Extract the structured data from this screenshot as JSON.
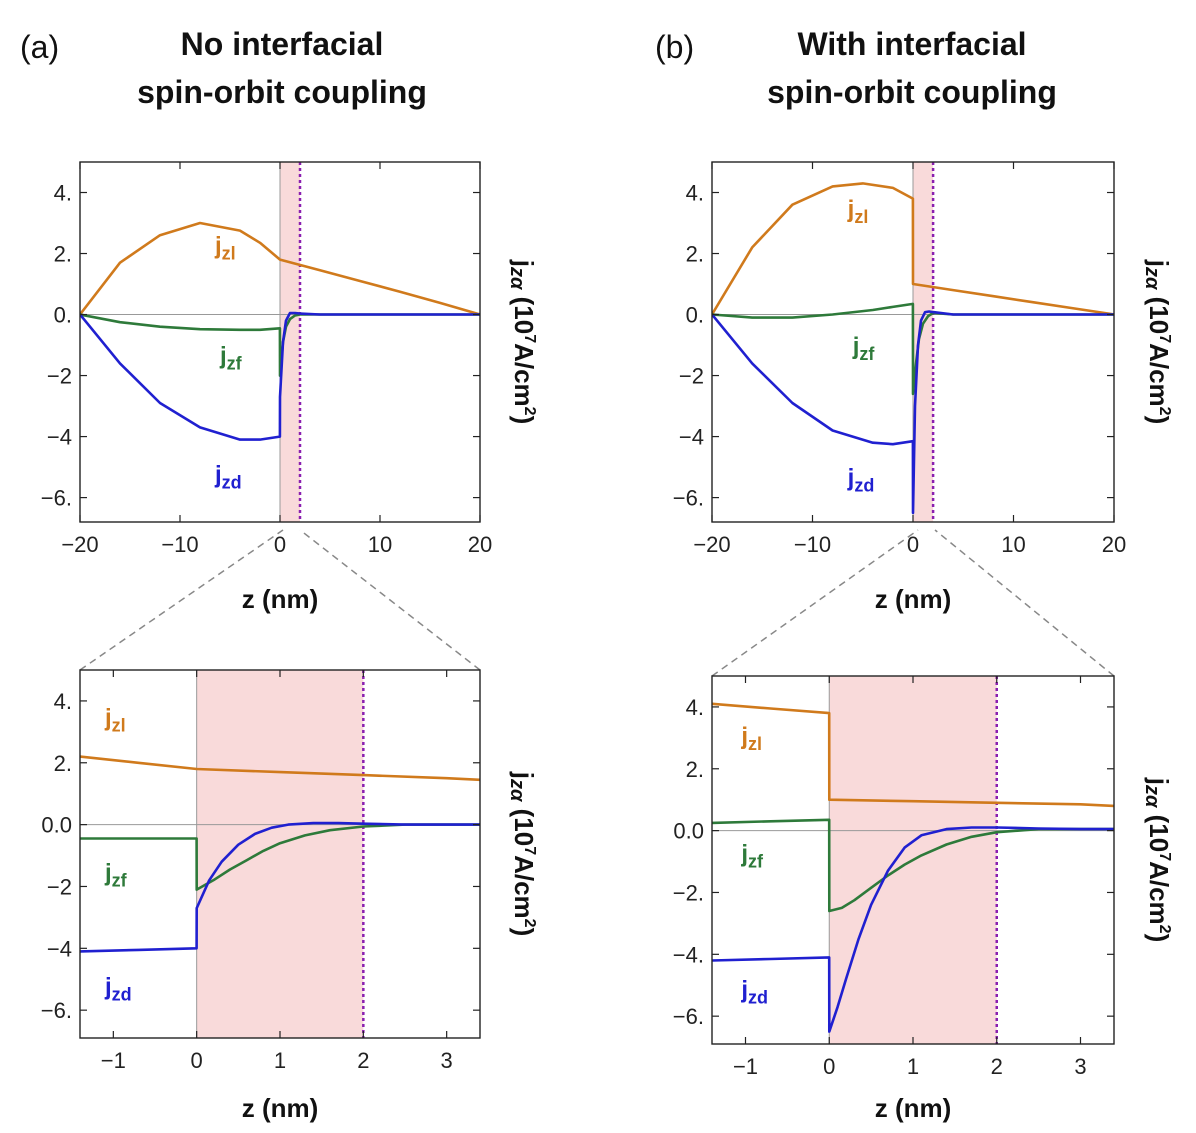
{
  "panels": [
    {
      "id": "a",
      "label": "(a)",
      "title_line1": "No interfacial",
      "title_line2": "spin-orbit coupling"
    },
    {
      "id": "b",
      "label": "(b)",
      "title_line1": "With interfacial",
      "title_line2": "spin-orbit coupling"
    }
  ],
  "ylabel": {
    "main": "j",
    "sub": "zα",
    "rest": " (10",
    "sup7": "7",
    "unit": "A/cm",
    "sup2": "2",
    "close": ")"
  },
  "xlabel": "z (nm)",
  "colors": {
    "jzl": "#d07a1c",
    "jzf": "#2e7a3a",
    "jzd": "#2020d0",
    "interface": "#f9dada",
    "dotted": "#8a1fb0",
    "zero": "#999999"
  },
  "chart_data": [
    {
      "type": "line",
      "panel": "a-top",
      "xlim": [
        -20,
        20
      ],
      "ylim": [
        -6.8,
        5
      ],
      "xticks": [
        "−20",
        "−10",
        "0",
        "10",
        "20"
      ],
      "xtick_values": [
        -20,
        -10,
        0,
        10,
        20
      ],
      "yticks": [
        "4.",
        "2.",
        "0.",
        "−2",
        "−4",
        "−6."
      ],
      "ytick_values": [
        4,
        2,
        0,
        -2,
        -4,
        -6
      ],
      "shade": [
        0,
        2
      ],
      "dotted_x": 2,
      "series": [
        {
          "name": "jzl",
          "label_main": "j",
          "label_sub": "zl",
          "label_at": [
            -6.5,
            2.0
          ],
          "x": [
            -20,
            -16,
            -12,
            -8,
            -4,
            -2,
            0,
            4,
            8,
            12,
            16,
            20
          ],
          "y": [
            0,
            1.7,
            2.6,
            3.0,
            2.75,
            2.35,
            1.8,
            1.45,
            1.1,
            0.75,
            0.38,
            0
          ]
        },
        {
          "name": "jzf",
          "label_main": "j",
          "label_sub": "zf",
          "label_at": [
            -6.0,
            -1.6
          ],
          "x": [
            -20,
            -16,
            -12,
            -8,
            -4,
            -2,
            -0.01,
            0.0,
            0.3,
            0.6,
            1.0,
            1.5,
            2,
            4,
            8,
            12,
            16,
            20
          ],
          "y": [
            0,
            -0.25,
            -0.4,
            -0.48,
            -0.5,
            -0.5,
            -0.45,
            -2.0,
            -0.9,
            -0.4,
            -0.15,
            -0.03,
            0,
            0,
            0,
            0,
            0,
            0
          ]
        },
        {
          "name": "jzd",
          "label_main": "j",
          "label_sub": "zd",
          "label_at": [
            -6.5,
            -5.5
          ],
          "x": [
            -20,
            -16,
            -12,
            -8,
            -4,
            -2,
            -0.01,
            0.0,
            0.3,
            0.6,
            1.0,
            1.5,
            2,
            4,
            8,
            12,
            16,
            20
          ],
          "y": [
            0,
            -1.6,
            -2.9,
            -3.7,
            -4.1,
            -4.1,
            -4.0,
            -2.7,
            -0.9,
            -0.2,
            0.05,
            0.05,
            0.03,
            0,
            0,
            0,
            0,
            0
          ]
        }
      ]
    },
    {
      "type": "line",
      "panel": "a-bottom",
      "xlim": [
        -1.4,
        3.4
      ],
      "ylim": [
        -6.9,
        5
      ],
      "xticks": [
        "−1",
        "0",
        "1",
        "2",
        "3"
      ],
      "xtick_values": [
        -1,
        0,
        1,
        2,
        3
      ],
      "yticks": [
        "4.",
        "2.",
        "0.0",
        "−2",
        "−4",
        "−6."
      ],
      "ytick_values": [
        4,
        2,
        0,
        -2,
        -4,
        -6
      ],
      "shade": [
        0,
        2
      ],
      "dotted_x": 2,
      "series": [
        {
          "name": "jzl",
          "label_main": "j",
          "label_sub": "zl",
          "label_at": [
            -1.1,
            3.2
          ],
          "x": [
            -1.4,
            -0.7,
            0,
            1,
            2,
            3,
            3.4
          ],
          "y": [
            2.2,
            2.0,
            1.8,
            1.7,
            1.6,
            1.5,
            1.45
          ]
        },
        {
          "name": "jzf",
          "label_main": "j",
          "label_sub": "zf",
          "label_at": [
            -1.1,
            -1.8
          ],
          "x": [
            -1.4,
            -0.7,
            -0.001,
            0.0,
            0.2,
            0.4,
            0.6,
            0.8,
            1.0,
            1.3,
            1.6,
            2.0,
            2.5,
            3.0,
            3.4
          ],
          "y": [
            -0.45,
            -0.45,
            -0.45,
            -2.1,
            -1.8,
            -1.45,
            -1.15,
            -0.85,
            -0.6,
            -0.35,
            -0.18,
            -0.06,
            0,
            0,
            0
          ]
        },
        {
          "name": "jzd",
          "label_main": "j",
          "label_sub": "zd",
          "label_at": [
            -1.1,
            -5.5
          ],
          "x": [
            -1.4,
            -0.7,
            -0.001,
            0.0,
            0.15,
            0.3,
            0.5,
            0.7,
            0.9,
            1.1,
            1.4,
            1.7,
            2.0,
            2.5,
            3.0,
            3.4
          ],
          "y": [
            -4.1,
            -4.05,
            -4.0,
            -2.7,
            -1.8,
            -1.2,
            -0.65,
            -0.3,
            -0.1,
            0.0,
            0.05,
            0.05,
            0.03,
            0,
            0,
            0
          ]
        }
      ]
    },
    {
      "type": "line",
      "panel": "b-top",
      "xlim": [
        -20,
        20
      ],
      "ylim": [
        -6.8,
        5
      ],
      "xticks": [
        "−20",
        "−10",
        "0",
        "10",
        "20"
      ],
      "xtick_values": [
        -20,
        -10,
        0,
        10,
        20
      ],
      "yticks": [
        "4.",
        "2.",
        "0.",
        "−2",
        "−4",
        "−6."
      ],
      "ytick_values": [
        4,
        2,
        0,
        -2,
        -4,
        -6
      ],
      "shade": [
        0,
        2
      ],
      "dotted_x": 2,
      "series": [
        {
          "name": "jzl",
          "label_main": "j",
          "label_sub": "zl",
          "label_at": [
            -6.5,
            3.2
          ],
          "x": [
            -20,
            -16,
            -12,
            -8,
            -5,
            -2,
            -0.01,
            0.0,
            4,
            8,
            12,
            16,
            20
          ],
          "y": [
            0,
            2.2,
            3.6,
            4.2,
            4.3,
            4.15,
            3.8,
            1.0,
            0.8,
            0.6,
            0.4,
            0.2,
            0
          ]
        },
        {
          "name": "jzf",
          "label_main": "j",
          "label_sub": "zf",
          "label_at": [
            -6.0,
            -1.3
          ],
          "x": [
            -20,
            -16,
            -12,
            -8,
            -4,
            -2,
            -0.01,
            0.0,
            0.3,
            0.6,
            1.0,
            1.5,
            2,
            4,
            8,
            12,
            16,
            20
          ],
          "y": [
            0,
            -0.1,
            -0.1,
            0.0,
            0.15,
            0.25,
            0.35,
            -2.6,
            -1.6,
            -0.8,
            -0.3,
            -0.05,
            0.05,
            0,
            0,
            0,
            0,
            0
          ]
        },
        {
          "name": "jzd",
          "label_main": "j",
          "label_sub": "zd",
          "label_at": [
            -6.5,
            -5.6
          ],
          "x": [
            -20,
            -16,
            -12,
            -8,
            -4,
            -2,
            -0.01,
            0.0,
            0.2,
            0.5,
            0.8,
            1.2,
            1.6,
            2,
            4,
            8,
            12,
            16,
            20
          ],
          "y": [
            0,
            -1.6,
            -2.9,
            -3.8,
            -4.2,
            -4.25,
            -4.15,
            -6.5,
            -3.0,
            -1.0,
            -0.2,
            0.08,
            0.1,
            0.08,
            0,
            0,
            0,
            0,
            0
          ]
        }
      ]
    },
    {
      "type": "line",
      "panel": "b-bottom",
      "xlim": [
        -1.4,
        3.4
      ],
      "ylim": [
        -6.9,
        5
      ],
      "xticks": [
        "−1",
        "0",
        "1",
        "2",
        "3"
      ],
      "xtick_values": [
        -1,
        0,
        1,
        2,
        3
      ],
      "yticks": [
        "4.",
        "2.",
        "0.0",
        "−2.",
        "−4.",
        "−6."
      ],
      "ytick_values": [
        4,
        2,
        0,
        -2,
        -4,
        -6
      ],
      "shade": [
        0,
        2
      ],
      "dotted_x": 2,
      "series": [
        {
          "name": "jzl",
          "label_main": "j",
          "label_sub": "zl",
          "label_at": [
            -1.05,
            2.8
          ],
          "x": [
            -1.4,
            -0.7,
            -0.001,
            0.0,
            1,
            2,
            3,
            3.4
          ],
          "y": [
            4.1,
            3.95,
            3.8,
            1.0,
            0.95,
            0.9,
            0.85,
            0.8
          ]
        },
        {
          "name": "jzf",
          "label_main": "j",
          "label_sub": "zf",
          "label_at": [
            -1.05,
            -1.0
          ],
          "x": [
            -1.4,
            -0.7,
            -0.001,
            0.0,
            0.15,
            0.3,
            0.5,
            0.7,
            0.9,
            1.1,
            1.4,
            1.7,
            2.0,
            2.5,
            3.0,
            3.4
          ],
          "y": [
            0.25,
            0.3,
            0.35,
            -2.6,
            -2.5,
            -2.25,
            -1.85,
            -1.45,
            -1.1,
            -0.8,
            -0.45,
            -0.2,
            -0.05,
            0.05,
            0.05,
            0.05
          ]
        },
        {
          "name": "jzd",
          "label_main": "j",
          "label_sub": "zd",
          "label_at": [
            -1.05,
            -5.4
          ],
          "x": [
            -1.4,
            -0.7,
            -0.001,
            0.0,
            0.1,
            0.2,
            0.35,
            0.5,
            0.7,
            0.9,
            1.1,
            1.4,
            1.7,
            2.0,
            2.5,
            3.0,
            3.4
          ],
          "y": [
            -4.2,
            -4.15,
            -4.1,
            -6.5,
            -5.7,
            -4.8,
            -3.5,
            -2.4,
            -1.3,
            -0.55,
            -0.15,
            0.05,
            0.1,
            0.1,
            0.07,
            0.05,
            0.05
          ]
        }
      ]
    }
  ]
}
